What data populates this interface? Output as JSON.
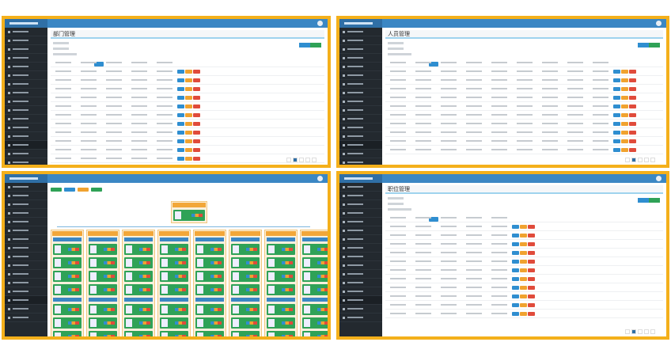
{
  "panels": [
    {
      "title": "部门管理",
      "kind": "table"
    },
    {
      "title": "人员管理",
      "kind": "table"
    },
    {
      "title": "",
      "kind": "org"
    },
    {
      "title": "职位管理",
      "kind": "table"
    }
  ],
  "colors": {
    "border": "#f4b01b",
    "header": "#3b87c4",
    "sidebar": "#23292f",
    "edit": "#2f8ed0",
    "view": "#f0a22f",
    "delete": "#e04b3b",
    "node": "#2fa257"
  }
}
